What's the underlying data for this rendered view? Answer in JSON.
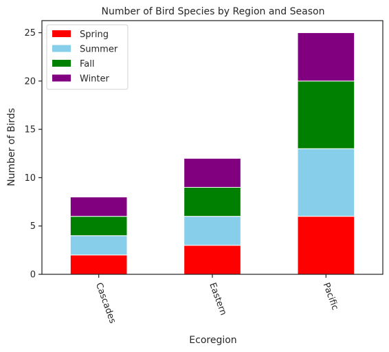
{
  "chart_data": {
    "type": "bar",
    "stacked": true,
    "title": "Number of Bird Species by Region and Season",
    "xlabel": "Ecoregion",
    "ylabel": "Number of Birds",
    "categories": [
      "Cascades",
      "Eastern",
      "Pacific"
    ],
    "series": [
      {
        "name": "Spring",
        "color": "#ff0000",
        "values": [
          2,
          3,
          6
        ]
      },
      {
        "name": "Summer",
        "color": "#87ceeb",
        "values": [
          2,
          3,
          7
        ]
      },
      {
        "name": "Fall",
        "color": "#008000",
        "values": [
          2,
          3,
          7
        ]
      },
      {
        "name": "Winter",
        "color": "#800080",
        "values": [
          2,
          3,
          5
        ]
      }
    ],
    "ylim": [
      0,
      26.25
    ],
    "yticks": [
      0,
      5,
      10,
      15,
      20,
      25
    ],
    "grid": false,
    "legend_position": "upper-left",
    "x_tick_rotation": -70
  }
}
